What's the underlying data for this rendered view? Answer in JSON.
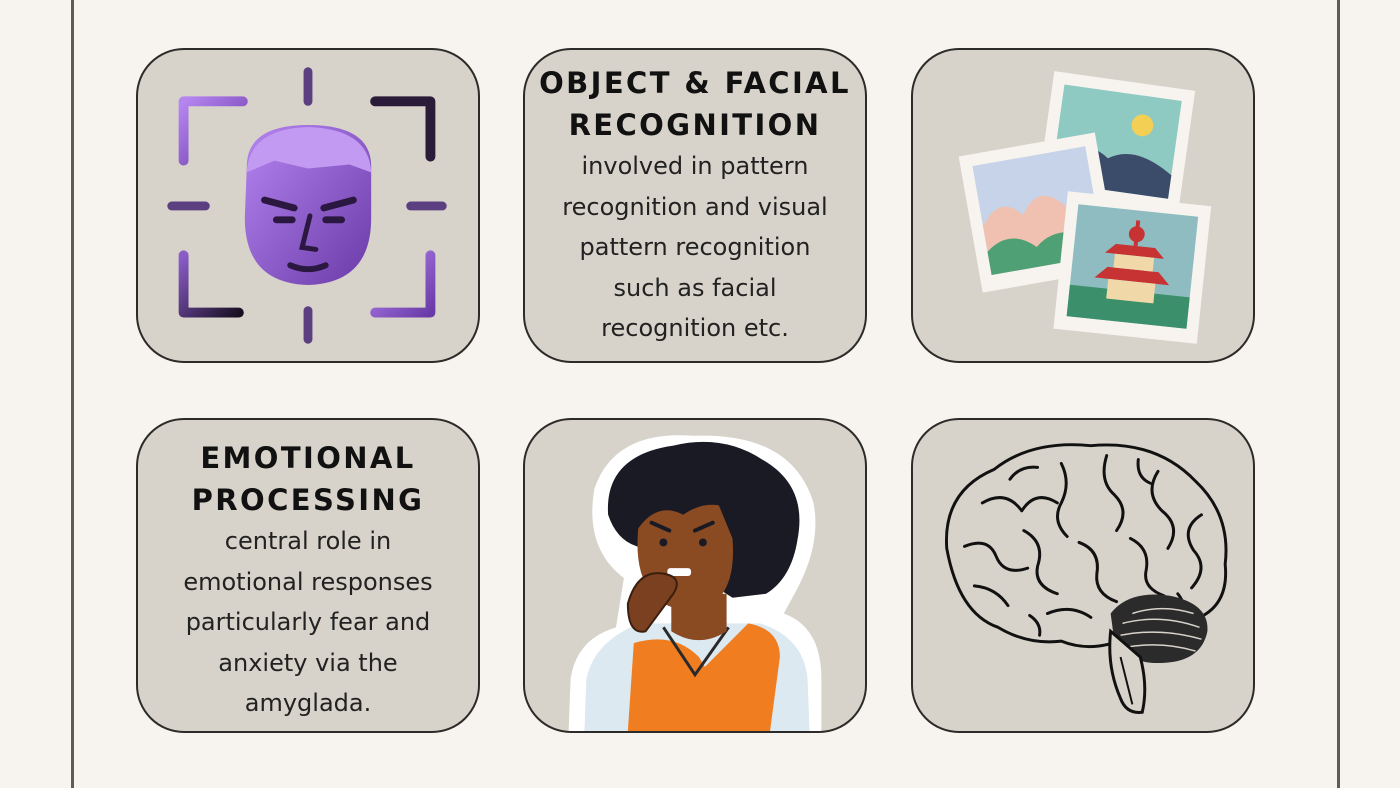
{
  "cards": [
    {
      "id": "face-scan",
      "icon": "face-scan-icon"
    },
    {
      "id": "object-facial-recognition",
      "heading": "OBJECT & FACIAL\nRECOGNITION",
      "body": "involved in pattern\nrecognition and visual\npattern recognition\nsuch as facial\nrecognition etc."
    },
    {
      "id": "photos",
      "icon": "photos-icon"
    },
    {
      "id": "emotional-processing",
      "heading": "EMOTIONAL\nPROCESSING",
      "body": "central role in\nemotional responses\nparticularly fear and\nanxiety via the\namyglada."
    },
    {
      "id": "anxious-person",
      "icon": "anxious-person-icon"
    },
    {
      "id": "brain",
      "icon": "brain-icon"
    }
  ],
  "colors": {
    "background": "#f7f4ef",
    "card": "#d8d3ca",
    "card_border": "#2d2b29",
    "accent_purple": "#9a66d6",
    "orange": "#f07d20"
  }
}
